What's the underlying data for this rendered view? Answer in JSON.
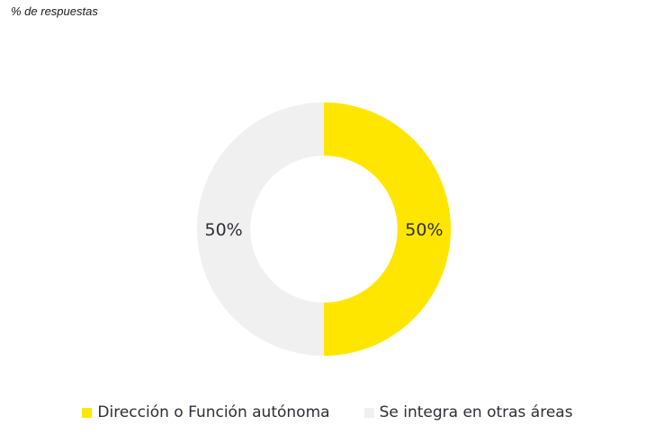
{
  "subtitle": "% de respuestas",
  "chart_data": {
    "type": "pie",
    "hole": 0.58,
    "labels": [
      "Dirección o Función autónoma",
      "Se integra en otras áreas"
    ],
    "values": [
      50,
      50
    ],
    "data_labels": [
      "50%",
      "50%"
    ],
    "colors": [
      "#FFE600",
      "#F0F0F0"
    ],
    "legend": "bottom"
  }
}
